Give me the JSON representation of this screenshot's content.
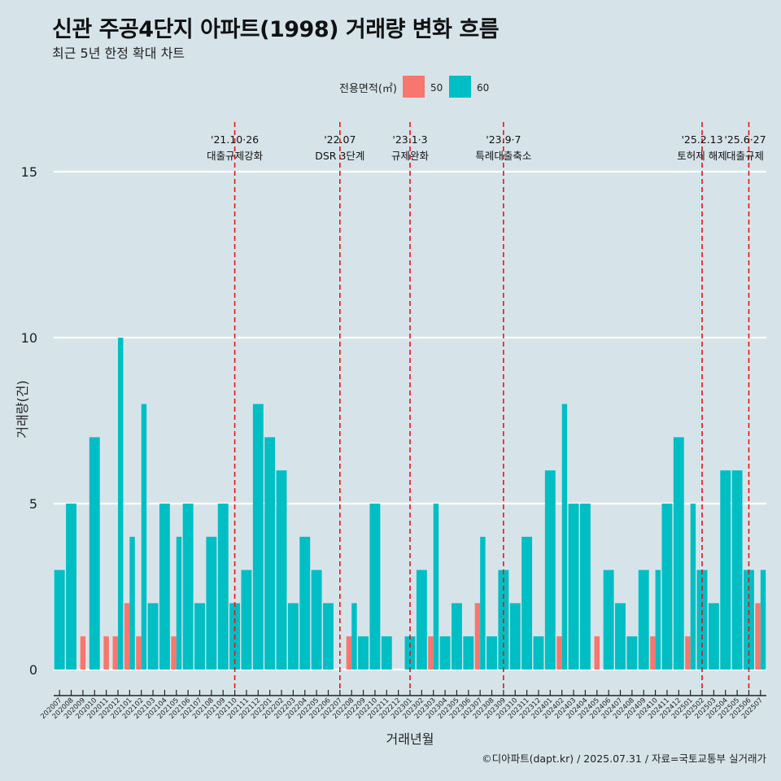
{
  "title": "신관 주공4단지 아파트(1998) 거래량 변화 흐름",
  "subtitle": "최근 5년 한정 확대 차트",
  "caption": {
    "source_site": "©디아파트(dapt.kr)",
    "date": "2025.07.31",
    "data_source": "자료=국토교통부 실거래가"
  },
  "chart_data": {
    "type": "bar",
    "xlabel": "거래년월",
    "ylabel": "거래량(건)",
    "ylim": [
      0,
      16.5
    ],
    "yticks": [
      0,
      5,
      10,
      15
    ],
    "grid": true,
    "legend_title": "전용면적(㎡)",
    "legend_position": "top",
    "categories": [
      "202007",
      "202008",
      "202009",
      "202010",
      "202011",
      "202012",
      "202101",
      "202102",
      "202103",
      "202104",
      "202105",
      "202106",
      "202107",
      "202108",
      "202109",
      "202110",
      "202111",
      "202112",
      "202201",
      "202202",
      "202203",
      "202204",
      "202205",
      "202206",
      "202207",
      "202208",
      "202209",
      "202210",
      "202211",
      "202212",
      "202301",
      "202302",
      "202303",
      "202304",
      "202305",
      "202306",
      "202307",
      "202308",
      "202309",
      "202310",
      "202311",
      "202312",
      "202401",
      "202402",
      "202403",
      "202404",
      "202405",
      "202406",
      "202407",
      "202408",
      "202409",
      "202410",
      "202411",
      "202412",
      "202501",
      "202502",
      "202503",
      "202504",
      "202505",
      "202506",
      "202507"
    ],
    "series": [
      {
        "name": "50",
        "color": "#f8766d",
        "values": [
          0,
          0,
          1,
          0,
          1,
          1,
          2,
          1,
          0,
          0,
          1,
          0,
          0,
          0,
          0,
          0,
          0,
          0,
          0,
          0,
          0,
          0,
          0,
          0,
          0,
          1,
          0,
          0,
          0,
          0,
          0,
          0,
          1,
          0,
          0,
          0,
          2,
          0,
          0,
          0,
          0,
          0,
          0,
          1,
          0,
          0,
          1,
          0,
          0,
          0,
          0,
          1,
          0,
          0,
          1,
          0,
          0,
          0,
          0,
          0,
          2
        ]
      },
      {
        "name": "60",
        "color": "#00bfc4",
        "values": [
          3,
          5,
          0,
          7,
          0,
          10,
          4,
          8,
          2,
          5,
          4,
          5,
          2,
          4,
          5,
          2,
          3,
          8,
          7,
          6,
          2,
          4,
          3,
          2,
          0,
          2,
          1,
          5,
          1,
          0,
          1,
          3,
          5,
          1,
          2,
          1,
          4,
          1,
          3,
          2,
          4,
          1,
          6,
          8,
          5,
          5,
          0,
          3,
          2,
          1,
          3,
          3,
          5,
          7,
          5,
          3,
          2,
          6,
          6,
          3,
          3
        ]
      }
    ],
    "events": [
      {
        "category": "202110",
        "date_label": "'21.10·26",
        "label": "대출규제강화"
      },
      {
        "category": "202207",
        "date_label": "'22.07",
        "label": "DSR 3단계"
      },
      {
        "category": "202301",
        "date_label": "'23.1·3",
        "label": "규제완화"
      },
      {
        "category": "202309",
        "date_label": "'23.9·7",
        "label": "특례대출축소"
      },
      {
        "category": "202502",
        "date_label": "'25.2.13",
        "label": "토허제 해제"
      },
      {
        "category": "202506",
        "date_label": "'25.6·27",
        "label": "대출규제"
      }
    ]
  }
}
